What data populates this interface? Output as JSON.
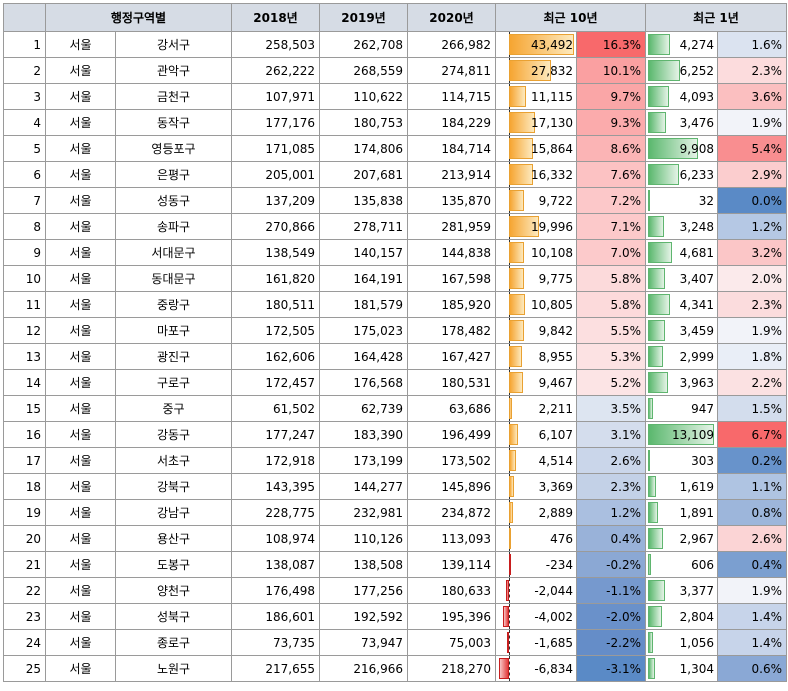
{
  "header": {
    "region": "행정구역별",
    "y2018": "2018년",
    "y2019": "2019년",
    "y2020": "2020년",
    "recent10": "최근 10년",
    "recent1": "최근 1년"
  },
  "rows": [
    {
      "idx": "1",
      "city": "서울",
      "gu": "강서구",
      "v2018": "258,503",
      "v2019": "262,708",
      "v2020": "266,982",
      "d10": "43,492",
      "n10": 43492,
      "p10": "16.3%",
      "d1": "4,274",
      "n1": 4274,
      "p1": "1.6%",
      "c10": "#f8696b",
      "c1": "#dbe3f0"
    },
    {
      "idx": "2",
      "city": "서울",
      "gu": "관악구",
      "v2018": "262,222",
      "v2019": "268,559",
      "v2020": "274,811",
      "d10": "27,832",
      "n10": 27832,
      "p10": "10.1%",
      "d1": "6,252",
      "n1": 6252,
      "p1": "2.3%",
      "c10": "#faa0a1",
      "c1": "#fcdcdd"
    },
    {
      "idx": "3",
      "city": "서울",
      "gu": "금천구",
      "v2018": "107,971",
      "v2019": "110,622",
      "v2020": "114,715",
      "d10": "11,115",
      "n10": 11115,
      "p10": "9.7%",
      "d1": "4,093",
      "n1": 4093,
      "p1": "3.6%",
      "c10": "#faa6a7",
      "c1": "#fbbfc0"
    },
    {
      "idx": "4",
      "city": "서울",
      "gu": "동작구",
      "v2018": "177,176",
      "v2019": "180,753",
      "v2020": "184,229",
      "d10": "17,130",
      "n10": 17130,
      "p10": "9.3%",
      "d1": "3,476",
      "n1": 3476,
      "p1": "1.9%",
      "c10": "#fbabac",
      "c1": "#f2f3f9"
    },
    {
      "idx": "5",
      "city": "서울",
      "gu": "영등포구",
      "v2018": "171,085",
      "v2019": "174,806",
      "v2020": "184,714",
      "d10": "15,864",
      "n10": 15864,
      "p10": "8.6%",
      "d1": "9,908",
      "n1": 9908,
      "p1": "5.4%",
      "c10": "#fbb4b5",
      "c1": "#f98e90"
    },
    {
      "idx": "6",
      "city": "서울",
      "gu": "은평구",
      "v2018": "205,001",
      "v2019": "207,681",
      "v2020": "213,914",
      "d10": "16,332",
      "n10": 16332,
      "p10": "7.6%",
      "d1": "6,233",
      "n1": 6233,
      "p1": "2.9%",
      "c10": "#fcc2c3",
      "c1": "#fbcdce"
    },
    {
      "idx": "7",
      "city": "서울",
      "gu": "성동구",
      "v2018": "137,209",
      "v2019": "135,838",
      "v2020": "135,870",
      "d10": "9,722",
      "n10": 9722,
      "p10": "7.2%",
      "d1": "32",
      "n1": 32,
      "p1": "0.0%",
      "c10": "#fcc8c9",
      "c1": "#5a8ac6"
    },
    {
      "idx": "8",
      "city": "서울",
      "gu": "송파구",
      "v2018": "270,866",
      "v2019": "278,711",
      "v2020": "281,959",
      "d10": "19,996",
      "n10": 19996,
      "p10": "7.1%",
      "d1": "3,248",
      "n1": 3248,
      "p1": "1.2%",
      "c10": "#fcc9ca",
      "c1": "#b5c8e4"
    },
    {
      "idx": "9",
      "city": "서울",
      "gu": "서대문구",
      "v2018": "138,549",
      "v2019": "140,157",
      "v2020": "144,838",
      "d10": "10,108",
      "n10": 10108,
      "p10": "7.0%",
      "d1": "4,681",
      "n1": 4681,
      "p1": "3.2%",
      "c10": "#fccacb",
      "c1": "#fbc6c7"
    },
    {
      "idx": "10",
      "city": "서울",
      "gu": "동대문구",
      "v2018": "161,820",
      "v2019": "164,191",
      "v2020": "167,598",
      "d10": "9,775",
      "n10": 9775,
      "p10": "5.8%",
      "d1": "3,407",
      "n1": 3407,
      "p1": "2.0%",
      "c10": "#fcdadb",
      "c1": "#fbeaeb"
    },
    {
      "idx": "11",
      "city": "서울",
      "gu": "중랑구",
      "v2018": "180,511",
      "v2019": "181,579",
      "v2020": "185,920",
      "d10": "10,805",
      "n10": 10805,
      "p10": "5.8%",
      "d1": "4,341",
      "n1": 4341,
      "p1": "2.3%",
      "c10": "#fcdadb",
      "c1": "#fbdcdd"
    },
    {
      "idx": "12",
      "city": "서울",
      "gu": "마포구",
      "v2018": "172,505",
      "v2019": "175,023",
      "v2020": "178,482",
      "d10": "9,842",
      "n10": 9842,
      "p10": "5.5%",
      "d1": "3,459",
      "n1": 3459,
      "p1": "1.9%",
      "c10": "#fcdfe0",
      "c1": "#f2f3f9"
    },
    {
      "idx": "13",
      "city": "서울",
      "gu": "광진구",
      "v2018": "162,606",
      "v2019": "164,428",
      "v2020": "167,427",
      "d10": "8,955",
      "n10": 8955,
      "p10": "5.3%",
      "d1": "2,999",
      "n1": 2999,
      "p1": "1.8%",
      "c10": "#fce2e3",
      "c1": "#e9eef7"
    },
    {
      "idx": "14",
      "city": "서울",
      "gu": "구로구",
      "v2018": "172,457",
      "v2019": "176,568",
      "v2020": "180,531",
      "d10": "9,467",
      "n10": 9467,
      "p10": "5.2%",
      "d1": "3,963",
      "n1": 3963,
      "p1": "2.2%",
      "c10": "#fce4e5",
      "c1": "#fbe1e2"
    },
    {
      "idx": "15",
      "city": "서울",
      "gu": "중구",
      "v2018": "61,502",
      "v2019": "62,739",
      "v2020": "63,686",
      "d10": "2,211",
      "n10": 2211,
      "p10": "3.5%",
      "d1": "947",
      "n1": 947,
      "p1": "1.5%",
      "c10": "#dde5f1",
      "c1": "#d3dded"
    },
    {
      "idx": "16",
      "city": "서울",
      "gu": "강동구",
      "v2018": "177,247",
      "v2019": "183,390",
      "v2020": "196,499",
      "d10": "6,107",
      "n10": 6107,
      "p10": "3.1%",
      "d1": "13,109",
      "n1": 13109,
      "p1": "6.7%",
      "c10": "#d4dded",
      "c1": "#f8696b"
    },
    {
      "idx": "17",
      "city": "서울",
      "gu": "서초구",
      "v2018": "172,918",
      "v2019": "173,199",
      "v2020": "173,502",
      "d10": "4,514",
      "n10": 4514,
      "p10": "2.6%",
      "d1": "303",
      "n1": 303,
      "p1": "0.2%",
      "c10": "#cad6ea",
      "c1": "#6893cb"
    },
    {
      "idx": "18",
      "city": "서울",
      "gu": "강북구",
      "v2018": "143,395",
      "v2019": "144,277",
      "v2020": "145,896",
      "d10": "3,369",
      "n10": 3369,
      "p10": "2.3%",
      "d1": "1,619",
      "n1": 1619,
      "p1": "1.1%",
      "c10": "#c3d1e7",
      "c1": "#afc4e2"
    },
    {
      "idx": "19",
      "city": "서울",
      "gu": "강남구",
      "v2018": "228,775",
      "v2019": "232,981",
      "v2020": "234,872",
      "d10": "2,889",
      "n10": 2889,
      "p10": "1.2%",
      "d1": "1,891",
      "n1": 1891,
      "p1": "0.8%",
      "c10": "#aabfe0",
      "c1": "#9db6db"
    },
    {
      "idx": "20",
      "city": "서울",
      "gu": "용산구",
      "v2018": "108,974",
      "v2019": "110,126",
      "v2020": "113,093",
      "d10": "476",
      "n10": 476,
      "p10": "0.4%",
      "d1": "2,967",
      "n1": 2967,
      "p1": "2.6%",
      "c10": "#99b2d9",
      "c1": "#fbd4d5"
    },
    {
      "idx": "21",
      "city": "서울",
      "gu": "도봉구",
      "v2018": "138,087",
      "v2019": "138,508",
      "v2020": "139,114",
      "d10": "-234",
      "n10": -234,
      "p10": "-0.2%",
      "d1": "606",
      "n1": 606,
      "p1": "0.4%",
      "c10": "#8ba8d4",
      "c1": "#7b9fd0"
    },
    {
      "idx": "22",
      "city": "서울",
      "gu": "양천구",
      "v2018": "176,498",
      "v2019": "177,256",
      "v2020": "180,633",
      "d10": "-2,044",
      "n10": -2044,
      "p10": "-1.1%",
      "d1": "3,377",
      "n1": 3377,
      "p1": "1.9%",
      "c10": "#7699ce",
      "c1": "#f2f3f9"
    },
    {
      "idx": "23",
      "city": "서울",
      "gu": "성북구",
      "v2018": "186,601",
      "v2019": "192,592",
      "v2020": "195,396",
      "d10": "-4,002",
      "n10": -4002,
      "p10": "-2.0%",
      "d1": "2,804",
      "n1": 2804,
      "p1": "1.4%",
      "c10": "#6a91ca",
      "c1": "#c7d4ea"
    },
    {
      "idx": "24",
      "city": "서울",
      "gu": "종로구",
      "v2018": "73,735",
      "v2019": "73,947",
      "v2020": "75,003",
      "d10": "-1,685",
      "n10": -1685,
      "p10": "-2.2%",
      "d1": "1,056",
      "n1": 1056,
      "p1": "1.4%",
      "c10": "#658dc8",
      "c1": "#c7d4ea"
    },
    {
      "idx": "25",
      "city": "서울",
      "gu": "노원구",
      "v2018": "217,655",
      "v2019": "216,966",
      "v2020": "218,270",
      "d10": "-6,834",
      "n10": -6834,
      "p10": "-3.1%",
      "d1": "1,304",
      "n1": 1304,
      "p1": "0.6%",
      "c10": "#5a8ac6",
      "c1": "#8aa8d5"
    }
  ]
}
